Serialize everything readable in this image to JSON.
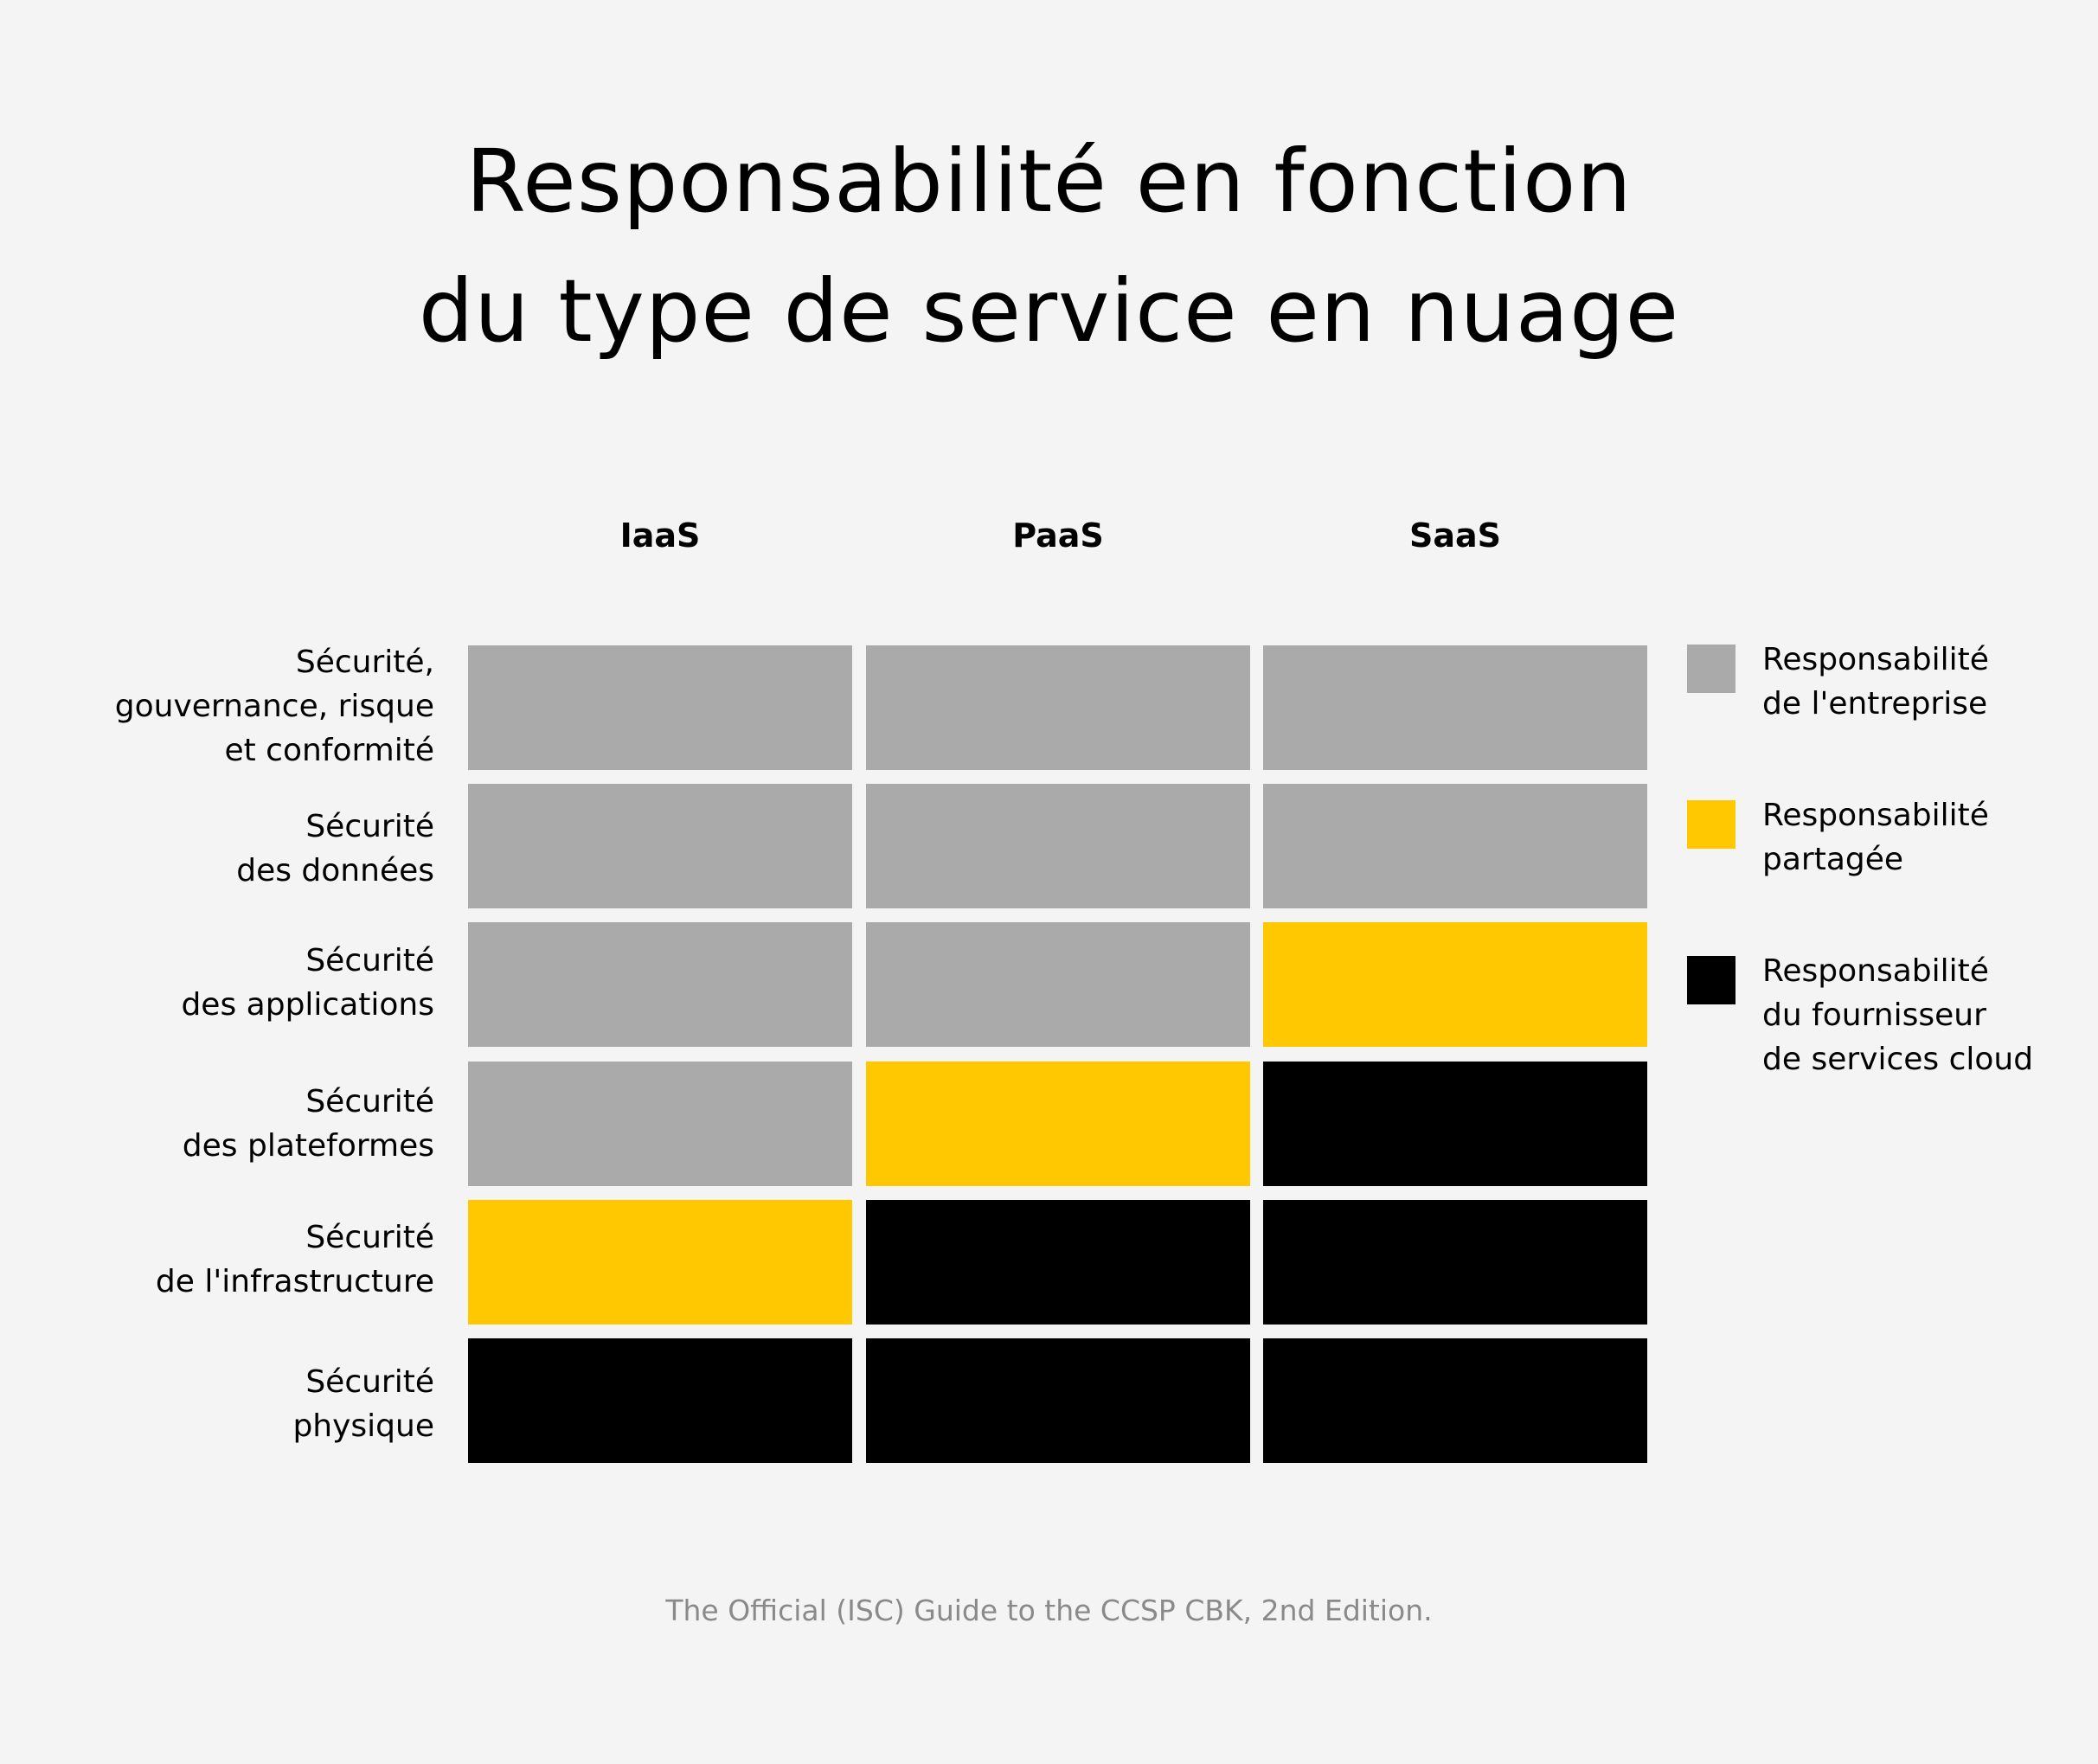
{
  "title": {
    "line1": "Responsabilité en fonction",
    "line2": "du type de service en nuage"
  },
  "columns": [
    "IaaS",
    "PaaS",
    "SaaS"
  ],
  "rows": [
    {
      "label": "Sécurité,\ngouvernance, risque\net conformité",
      "cells": [
        "entreprise",
        "entreprise",
        "entreprise"
      ]
    },
    {
      "label": "Sécurité\ndes données",
      "cells": [
        "entreprise",
        "entreprise",
        "entreprise"
      ]
    },
    {
      "label": "Sécurité\ndes applications",
      "cells": [
        "entreprise",
        "entreprise",
        "partagee"
      ]
    },
    {
      "label": "Sécurité\ndes plateformes",
      "cells": [
        "entreprise",
        "partagee",
        "fournisseur"
      ]
    },
    {
      "label": "Sécurité\nde l'infrastructure",
      "cells": [
        "partagee",
        "fournisseur",
        "fournisseur"
      ]
    },
    {
      "label": "Sécurité\nphysique",
      "cells": [
        "fournisseur",
        "fournisseur",
        "fournisseur"
      ]
    }
  ],
  "legend": [
    {
      "key": "entreprise",
      "label": "Responsabilité\nde l'entreprise",
      "color": "#aaaaaa"
    },
    {
      "key": "partagee",
      "label": "Responsabilité\npartagée",
      "color": "#ffc800"
    },
    {
      "key": "fournisseur",
      "label": "Responsabilité\ndu fournisseur\nde services cloud",
      "color": "#000000"
    }
  ],
  "source": "The Official (ISC) Guide to the CCSP CBK, 2nd Edition."
}
